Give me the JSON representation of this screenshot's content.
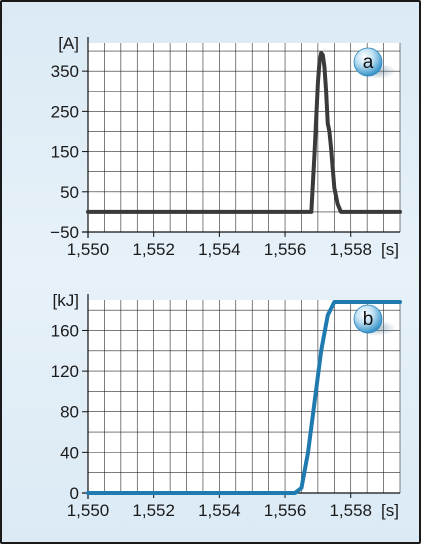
{
  "chart_data": [
    {
      "id": "a",
      "type": "line",
      "panel_label": "a",
      "unit_label": "[A]",
      "x_unit_label": "[s]",
      "xlim": [
        1.55,
        1.5595
      ],
      "ylim": [
        -50,
        420
      ],
      "x_ticks": [
        1.55,
        1.552,
        1.554,
        1.556,
        1.558
      ],
      "x_tick_labels": [
        "1,550",
        "1,552",
        "1,554",
        "1,556",
        "1,558"
      ],
      "y_ticks": [
        -50,
        50,
        150,
        250,
        350
      ],
      "y_tick_labels": [
        "−50",
        "50",
        "150",
        "250",
        "350"
      ],
      "grid": true,
      "line_color": "#3a3a3a",
      "series": [
        {
          "x": [
            1.55,
            1.5568,
            1.5569,
            1.557,
            1.55705,
            1.5571,
            1.55715,
            1.5572,
            1.55725,
            1.5573,
            1.55735,
            1.5574,
            1.55745,
            1.5575,
            1.5576,
            1.5577,
            1.5595
          ],
          "y": [
            0,
            0,
            150,
            320,
            375,
            395,
            390,
            360,
            300,
            220,
            200,
            160,
            110,
            60,
            20,
            0,
            0
          ]
        }
      ]
    },
    {
      "id": "b",
      "type": "line",
      "panel_label": "b",
      "unit_label": "[kJ]",
      "x_unit_label": "[s]",
      "xlim": [
        1.55,
        1.5595
      ],
      "ylim": [
        0,
        190
      ],
      "x_ticks": [
        1.55,
        1.552,
        1.554,
        1.556,
        1.558
      ],
      "x_tick_labels": [
        "1,550",
        "1,552",
        "1,554",
        "1,556",
        "1,558"
      ],
      "y_ticks": [
        0,
        40,
        80,
        120,
        160
      ],
      "y_tick_labels": [
        "0",
        "40",
        "80",
        "120",
        "160"
      ],
      "grid": true,
      "line_color": "#1f7ab0",
      "series": [
        {
          "x": [
            1.55,
            1.5563,
            1.5565,
            1.5567,
            1.5569,
            1.5571,
            1.5573,
            1.5575,
            1.5576,
            1.5595
          ],
          "y": [
            0,
            0,
            5,
            40,
            90,
            140,
            175,
            188,
            188,
            188
          ]
        }
      ]
    }
  ]
}
